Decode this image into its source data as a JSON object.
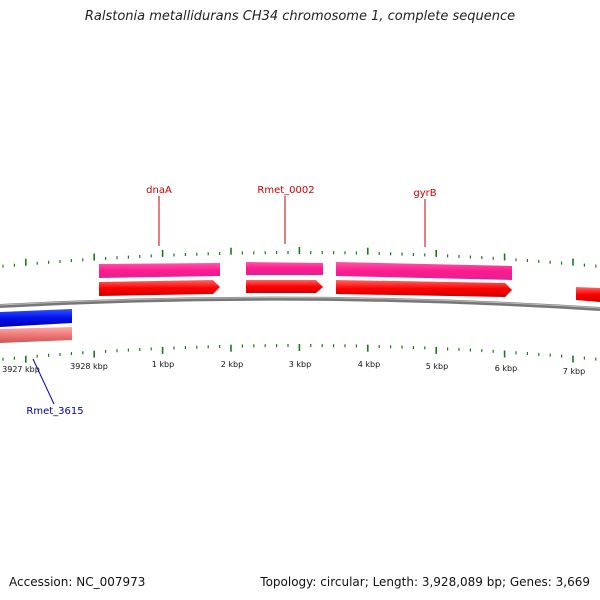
{
  "title": "Ralstonia metallidurans CH34 chromosome 1, complete sequence",
  "footer": {
    "accession_label": "Accession:",
    "accession": "NC_007973",
    "topology_label": "Topology:",
    "topology": "circular",
    "length_label": "Length:",
    "length": "3,928,089 bp",
    "genes_label": "Genes:",
    "genes": "3,669"
  },
  "scale_labels": [
    "3927 kbp",
    "3928 kbp",
    "1 kbp",
    "2 kbp",
    "3 kbp",
    "4 kbp",
    "5 kbp",
    "6 kbp",
    "7 kbp"
  ],
  "genes": [
    {
      "name": "dnaA",
      "strand": "+",
      "color": "#dd0000"
    },
    {
      "name": "Rmet_0002",
      "strand": "+",
      "color": "#dd0000"
    },
    {
      "name": "gyrB",
      "strand": "+",
      "color": "#dd0000"
    },
    {
      "name": "Rmet_3615",
      "strand": "-",
      "color": "#0000cc"
    }
  ],
  "colors": {
    "forward_cds": "#ff0000",
    "forward_gene": "#ff3399",
    "reverse_cds": "#0000ee",
    "reverse_gene": "#ee7777",
    "backbone": "#888888",
    "ticks": "#1a7a1a",
    "forward_label": "#cc0000",
    "reverse_label": "#0000aa"
  }
}
